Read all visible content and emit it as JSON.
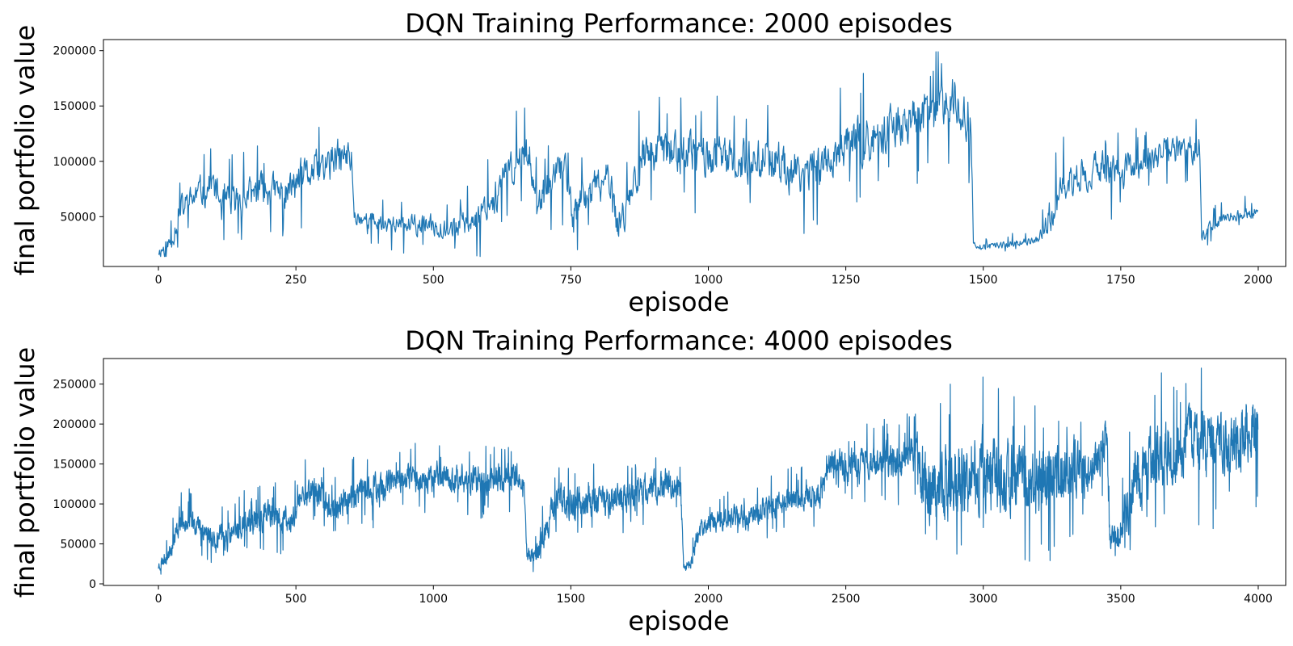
{
  "chart_data": [
    {
      "type": "line",
      "title": "DQN Training Performance: 2000 episodes",
      "xlabel": "episode",
      "ylabel": "final portfolio value",
      "xlim": [
        -100,
        2050
      ],
      "ylim": [
        5000,
        210000
      ],
      "xticks": [
        0,
        250,
        500,
        750,
        1000,
        1250,
        1500,
        1750,
        2000
      ],
      "xtick_labels": [
        "0",
        "250",
        "500",
        "750",
        "1000",
        "1250",
        "1500",
        "1750",
        "2000"
      ],
      "yticks": [
        50000,
        100000,
        150000,
        200000
      ],
      "ytick_labels": [
        "50000",
        "100000",
        "150000",
        "200000"
      ],
      "grid": false,
      "series": [
        {
          "name": "final portfolio value",
          "color": "#1f77b4",
          "n": 2000,
          "trend": [
            [
              0,
              18000
            ],
            [
              20,
              25000
            ],
            [
              40,
              55000
            ],
            [
              70,
              70000
            ],
            [
              100,
              80000
            ],
            [
              115,
              60000
            ],
            [
              150,
              65000
            ],
            [
              190,
              75000
            ],
            [
              230,
              70000
            ],
            [
              260,
              85000
            ],
            [
              300,
              95000
            ],
            [
              340,
              105000
            ],
            [
              352,
              100000
            ],
            [
              356,
              50000
            ],
            [
              400,
              45000
            ],
            [
              450,
              42000
            ],
            [
              500,
              42000
            ],
            [
              540,
              40000
            ],
            [
              580,
              50000
            ],
            [
              620,
              75000
            ],
            [
              650,
              100000
            ],
            [
              675,
              110000
            ],
            [
              690,
              55000
            ],
            [
              710,
              80000
            ],
            [
              740,
              95000
            ],
            [
              755,
              50000
            ],
            [
              780,
              70000
            ],
            [
              810,
              80000
            ],
            [
              825,
              90000
            ],
            [
              832,
              40000
            ],
            [
              850,
              60000
            ],
            [
              880,
              105000
            ],
            [
              920,
              110000
            ],
            [
              1000,
              105000
            ],
            [
              1060,
              100000
            ],
            [
              1100,
              105000
            ],
            [
              1150,
              90000
            ],
            [
              1200,
              95000
            ],
            [
              1250,
              115000
            ],
            [
              1300,
              120000
            ],
            [
              1350,
              135000
            ],
            [
              1400,
              140000
            ],
            [
              1440,
              160000
            ],
            [
              1478,
              140000
            ],
            [
              1482,
              25000
            ],
            [
              1500,
              22000
            ],
            [
              1550,
              26000
            ],
            [
              1600,
              28000
            ],
            [
              1620,
              50000
            ],
            [
              1650,
              80000
            ],
            [
              1700,
              95000
            ],
            [
              1750,
              90000
            ],
            [
              1800,
              100000
            ],
            [
              1850,
              110000
            ],
            [
              1893,
              115000
            ],
            [
              1897,
              30000
            ],
            [
              1920,
              45000
            ],
            [
              1950,
              50000
            ],
            [
              2000,
              55000
            ]
          ],
          "noise": [
            [
              0,
              6000
            ],
            [
              40,
              15000
            ],
            [
              350,
              20000
            ],
            [
              356,
              8000
            ],
            [
              550,
              12000
            ],
            [
              600,
              18000
            ],
            [
              1478,
              25000
            ],
            [
              1482,
              3000
            ],
            [
              1600,
              4000
            ],
            [
              1620,
              18000
            ],
            [
              1893,
              15000
            ],
            [
              1897,
              6000
            ],
            [
              2000,
              6000
            ]
          ],
          "spike_prob": 0.06,
          "spike_scale": 2.2,
          "ymin_clip": 14000,
          "ymax_clip": 199000,
          "seed": 11
        }
      ]
    },
    {
      "type": "line",
      "title": "DQN Training Performance: 4000 episodes",
      "xlabel": "episode",
      "ylabel": "final portfolio value",
      "xlim": [
        -200,
        4100
      ],
      "ylim": [
        -2000,
        282000
      ],
      "xticks": [
        0,
        500,
        1000,
        1500,
        2000,
        2500,
        3000,
        3500,
        4000
      ],
      "xtick_labels": [
        "0",
        "500",
        "1000",
        "1500",
        "2000",
        "2500",
        "3000",
        "3500",
        "4000"
      ],
      "yticks": [
        0,
        50000,
        100000,
        150000,
        200000,
        250000
      ],
      "ytick_labels": [
        "0",
        "50000",
        "100000",
        "150000",
        "200000",
        "250000"
      ],
      "grid": false,
      "series": [
        {
          "name": "final portfolio value",
          "color": "#1f77b4",
          "n": 4000,
          "trend": [
            [
              0,
              22000
            ],
            [
              40,
              40000
            ],
            [
              80,
              80000
            ],
            [
              120,
              80000
            ],
            [
              160,
              70000
            ],
            [
              200,
              55000
            ],
            [
              260,
              60000
            ],
            [
              320,
              75000
            ],
            [
              400,
              85000
            ],
            [
              480,
              75000
            ],
            [
              520,
              110000
            ],
            [
              560,
              120000
            ],
            [
              600,
              105000
            ],
            [
              650,
              95000
            ],
            [
              700,
              110000
            ],
            [
              800,
              120000
            ],
            [
              900,
              130000
            ],
            [
              1000,
              135000
            ],
            [
              1100,
              130000
            ],
            [
              1200,
              130000
            ],
            [
              1300,
              135000
            ],
            [
              1330,
              125000
            ],
            [
              1340,
              35000
            ],
            [
              1380,
              40000
            ],
            [
              1420,
              80000
            ],
            [
              1450,
              110000
            ],
            [
              1500,
              100000
            ],
            [
              1600,
              100000
            ],
            [
              1700,
              110000
            ],
            [
              1800,
              120000
            ],
            [
              1880,
              125000
            ],
            [
              1900,
              115000
            ],
            [
              1910,
              22000
            ],
            [
              1940,
              25000
            ],
            [
              1960,
              65000
            ],
            [
              2000,
              75000
            ],
            [
              2050,
              80000
            ],
            [
              2100,
              85000
            ],
            [
              2150,
              80000
            ],
            [
              2200,
              95000
            ],
            [
              2300,
              105000
            ],
            [
              2400,
              110000
            ],
            [
              2420,
              120000
            ],
            [
              2440,
              150000
            ],
            [
              2500,
              150000
            ],
            [
              2600,
              155000
            ],
            [
              2700,
              155000
            ],
            [
              2760,
              165000
            ],
            [
              2780,
              130000
            ],
            [
              2800,
              120000
            ],
            [
              2900,
              130000
            ],
            [
              3000,
              140000
            ],
            [
              3100,
              130000
            ],
            [
              3200,
              130000
            ],
            [
              3300,
              140000
            ],
            [
              3400,
              150000
            ],
            [
              3450,
              180000
            ],
            [
              3460,
              55000
            ],
            [
              3500,
              70000
            ],
            [
              3550,
              130000
            ],
            [
              3600,
              150000
            ],
            [
              3700,
              170000
            ],
            [
              3800,
              175000
            ],
            [
              3900,
              170000
            ],
            [
              4000,
              200000
            ]
          ],
          "noise": [
            [
              0,
              8000
            ],
            [
              80,
              16000
            ],
            [
              500,
              20000
            ],
            [
              1300,
              20000
            ],
            [
              1340,
              10000
            ],
            [
              1420,
              22000
            ],
            [
              1900,
              22000
            ],
            [
              1910,
              5000
            ],
            [
              1960,
              14000
            ],
            [
              2400,
              18000
            ],
            [
              2440,
              20000
            ],
            [
              2760,
              25000
            ],
            [
              2780,
              50000
            ],
            [
              3000,
              55000
            ],
            [
              3450,
              35000
            ],
            [
              3460,
              15000
            ],
            [
              3550,
              45000
            ],
            [
              4000,
              45000
            ]
          ],
          "spike_prob": 0.05,
          "spike_scale": 2.0,
          "ymin_clip": 12000,
          "ymax_clip": 270000,
          "seed": 23
        }
      ]
    }
  ]
}
